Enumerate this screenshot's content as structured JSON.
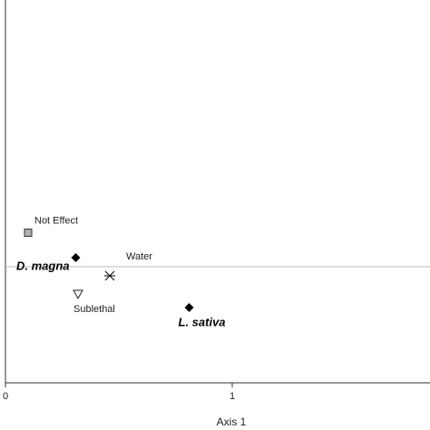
{
  "chart_data": {
    "type": "scatter",
    "x_label": "Axis 1",
    "xlim": [
      0,
      1.872
    ],
    "xticks": [
      0,
      1
    ],
    "ylim": [
      -0.512,
      1.176
    ],
    "zero_line": true,
    "points": [
      {
        "label": "Not Effect",
        "x": 0.1,
        "y": 0.15,
        "marker": "square",
        "color": "#b0b0b0",
        "label_style": "normal"
      },
      {
        "label": "D. magna",
        "x": 0.31,
        "y": 0.04,
        "marker": "diamond",
        "color": "#000000",
        "label_style": "bold-italic"
      },
      {
        "label": "Water",
        "x": 0.46,
        "y": -0.04,
        "marker": "x-star",
        "color": "#000000",
        "label_style": "normal"
      },
      {
        "label": "Sublethal",
        "x": 0.32,
        "y": -0.12,
        "marker": "triangle-down",
        "color": "#ffffff",
        "label_style": "normal"
      },
      {
        "label": "L. sativa",
        "x": 0.81,
        "y": -0.18,
        "marker": "diamond",
        "color": "#000000",
        "label_style": "bold-italic"
      }
    ]
  }
}
